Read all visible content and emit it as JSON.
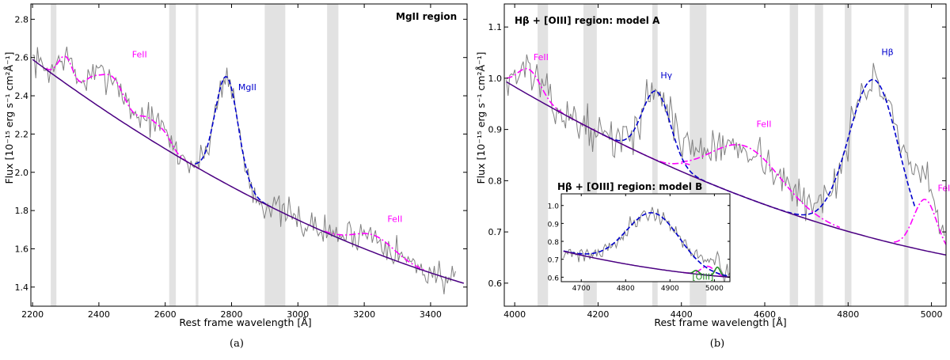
{
  "colors": {
    "data": "#808080",
    "continuum": "#4b0082",
    "feii": "#ff00ff",
    "broad": "#0000cd",
    "oiii": "#228b22",
    "band": "#e2e2e2"
  },
  "chart_data": [
    {
      "id": "a",
      "type": "line",
      "title": "MgII region",
      "xlabel": "Rest frame wavelength [Å]",
      "ylabel": "Flux [10⁻¹⁵ erg s⁻¹ cm²Å⁻¹]",
      "caption": "(a)",
      "xlim": [
        2195,
        3510
      ],
      "ylim": [
        1.3,
        2.88
      ],
      "xticks": [
        2200,
        2400,
        2600,
        2800,
        3000,
        3200,
        3400
      ],
      "yticks": [
        1.4,
        1.6,
        1.8,
        2.0,
        2.2,
        2.4,
        2.6,
        2.8
      ],
      "ytick_labels": [
        "1.4",
        "1.6",
        "1.8",
        "2.0",
        "2.2",
        "2.4",
        "2.6",
        "2.8"
      ],
      "masked_bands": [
        [
          2255,
          2272
        ],
        [
          2612,
          2632
        ],
        [
          2692,
          2700
        ],
        [
          2900,
          2962
        ],
        [
          3088,
          3122
        ]
      ],
      "continuum": {
        "a": 2.59,
        "b": 1.42,
        "c": 0.43,
        "x0": 2200,
        "x1": 3500
      },
      "feii": {
        "name": "FeII",
        "range": [
          2240,
          2700
        ],
        "gaussians": [
          [
            2300,
            0.14,
            22
          ],
          [
            2375,
            0.07,
            25
          ],
          [
            2440,
            0.2,
            40
          ],
          [
            2550,
            0.1,
            30
          ],
          [
            2600,
            0.06,
            22
          ]
        ]
      },
      "broad": {
        "name": "MgII",
        "range": [
          2690,
          2920
        ],
        "gaussians": [
          [
            2785,
            0.56,
            35
          ]
        ]
      },
      "feii2": {
        "range": [
          3080,
          3380
        ],
        "gaussians": [
          [
            3230,
            0.09,
            60
          ]
        ]
      },
      "noise": {
        "seed": 7,
        "amp": 0.065,
        "x0": 2200,
        "x1": 3480
      },
      "labels": [
        {
          "text": "FeII",
          "kind": "feii",
          "x": 2500,
          "y": 2.6
        },
        {
          "text": "MgII",
          "kind": "broad",
          "x": 2820,
          "y": 2.43
        },
        {
          "text": "FeII",
          "kind": "feii",
          "x": 3270,
          "y": 1.74
        }
      ]
    },
    {
      "id": "b",
      "type": "line",
      "title": "Hβ + [OIII] region: model A",
      "xlabel": "Rest frame wavelength [Å]",
      "ylabel": "Flux [10⁻¹⁵ erg s⁻¹ cm²Å⁻¹]",
      "caption": "(b)",
      "xlim": [
        3975,
        5035
      ],
      "ylim": [
        0.555,
        1.145
      ],
      "xticks": [
        4000,
        4200,
        4400,
        4600,
        4800,
        5000
      ],
      "yticks": [
        0.6,
        0.7,
        0.8,
        0.9,
        1.0,
        1.1
      ],
      "ytick_labels": [
        "0.6",
        "0.7",
        "0.8",
        "0.9",
        "1.0",
        "1.1"
      ],
      "masked_bands": [
        [
          4055,
          4080
        ],
        [
          4165,
          4197
        ],
        [
          4330,
          4343
        ],
        [
          4420,
          4460
        ],
        [
          4660,
          4680
        ],
        [
          4720,
          4740
        ],
        [
          4792,
          4808
        ],
        [
          4935,
          4945
        ]
      ],
      "continuum": {
        "a": 0.993,
        "b": 0.655,
        "c": 0.5,
        "x0": 3980,
        "x1": 5035
      },
      "feii": {
        "name": "FeII",
        "range": [
          3980,
          4420
        ],
        "gaussians": [
          [
            4035,
            0.05,
            28
          ],
          [
            4420,
            0.02,
            30
          ]
        ]
      },
      "feii2": {
        "range": [
          4400,
          4780
        ],
        "gaussians": [
          [
            4555,
            0.1,
            85
          ]
        ]
      },
      "feii3": {
        "range": [
          4910,
          5035
        ],
        "gaussians": [
          [
            4985,
            0.1,
            28
          ]
        ]
      },
      "broad": {
        "name": "Hβ",
        "range": [
          4210,
          4960
        ],
        "gaussians": [
          [
            4340,
            0.135,
            34
          ],
          [
            4862,
            0.31,
            60
          ]
        ]
      },
      "noise": {
        "seed": 13,
        "amp": 0.028,
        "x0": 3980,
        "x1": 5035
      },
      "labels": [
        {
          "text": "FeII",
          "kind": "feii",
          "x": 4045,
          "y": 1.035
        },
        {
          "text": "Hγ",
          "kind": "broad",
          "x": 4350,
          "y": 1.0
        },
        {
          "text": "FeII",
          "kind": "feii",
          "x": 4580,
          "y": 0.905
        },
        {
          "text": "Hβ",
          "kind": "broad",
          "x": 4880,
          "y": 1.045
        },
        {
          "text": "FeII",
          "kind": "feii",
          "x": 5015,
          "y": 0.78
        }
      ]
    },
    {
      "id": "inset",
      "type": "line",
      "title": "Hβ + [OIII] region: model B",
      "xlim": [
        4655,
        5035
      ],
      "ylim": [
        0.575,
        1.065
      ],
      "xticks": [
        4700,
        4800,
        4900,
        5000
      ],
      "yticks": [
        0.6,
        0.7,
        0.8,
        0.9,
        1.0
      ],
      "ytick_labels": [
        "0.6",
        "0.7",
        "0.8",
        "0.9",
        "1.0"
      ],
      "masked_bands": [],
      "continuum": {
        "a": 0.745,
        "b": 0.6,
        "c": 0.5,
        "x0": 4660,
        "x1": 5035
      },
      "broad": {
        "name": "Hβ",
        "range": [
          4660,
          5035
        ],
        "gaussians": [
          [
            4862,
            0.31,
            60
          ]
        ]
      },
      "feii": {
        "name": "",
        "range": [
          4930,
          5035
        ],
        "gaussians": [
          [
            4985,
            0.05,
            15
          ]
        ]
      },
      "oiii": {
        "name": "[OIII]",
        "range": [
          4940,
          5035
        ],
        "gaussians": [
          [
            4959,
            0.02,
            6
          ],
          [
            5007,
            0.05,
            6
          ]
        ]
      },
      "noise": {
        "seed": 21,
        "amp": 0.035,
        "x0": 4660,
        "x1": 5035
      },
      "labels": [
        {
          "text": "[OIII]",
          "kind": "oiii",
          "x": 4950,
          "y": 0.585
        }
      ]
    }
  ]
}
